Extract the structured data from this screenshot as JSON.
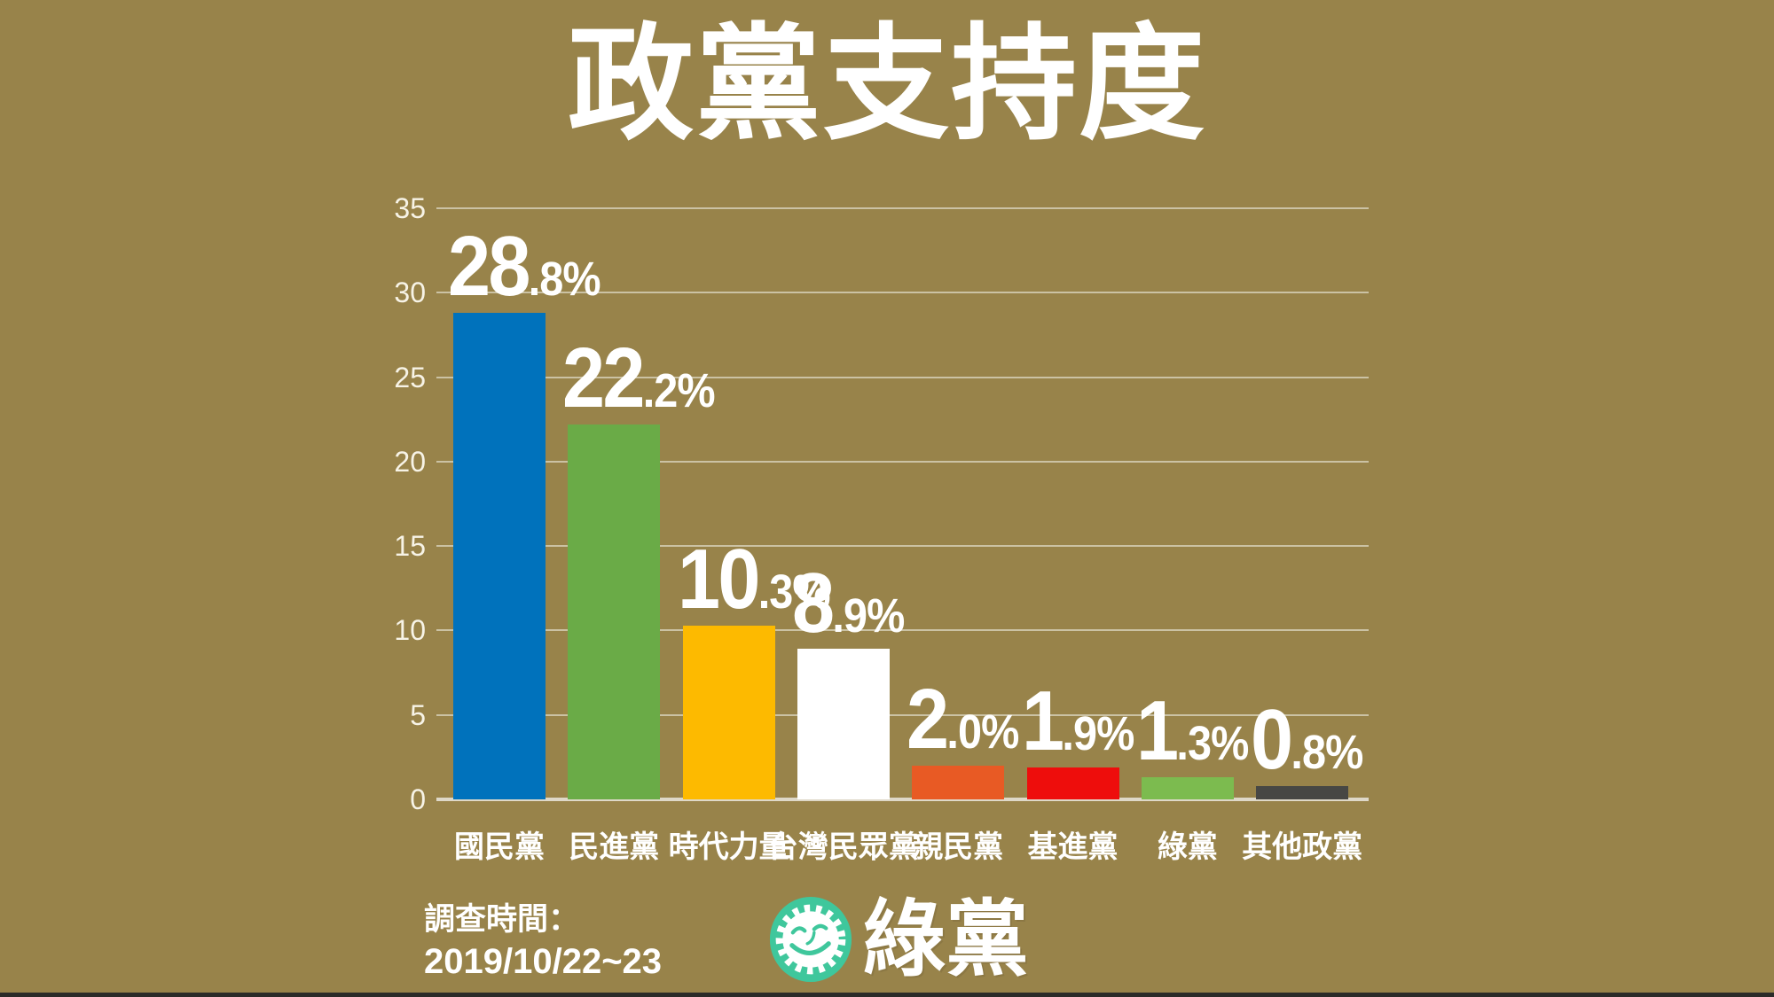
{
  "title": "政黨支持度",
  "chart_data": {
    "type": "bar",
    "title": "政黨支持度",
    "categories": [
      "國民黨",
      "民進黨",
      "時代力量",
      "台灣民眾黨",
      "親民黨",
      "基進黨",
      "綠黨",
      "其他政黨"
    ],
    "values": [
      28.8,
      22.2,
      10.3,
      8.9,
      2.0,
      1.9,
      1.3,
      0.8
    ],
    "value_labels": [
      "28.8%",
      "22.2%",
      "10.3%",
      "8.9%",
      "2.0%",
      "1.9%",
      "1.3%",
      "0.8%"
    ],
    "bar_colors": [
      "#0072bc",
      "#6aab47",
      "#fdba00",
      "#ffffff",
      "#e85a24",
      "#ee0d0c",
      "#7cbb4f",
      "#474744"
    ],
    "y_ticks": [
      0,
      5,
      10,
      15,
      20,
      25,
      30,
      35
    ],
    "ylim": [
      0,
      35
    ],
    "xlabel": "",
    "ylabel": "",
    "grid": true,
    "legend": false
  },
  "footer": {
    "survey_label": "調查時間：",
    "survey_date": "2019/10/22~23",
    "logo_text": "綠黨"
  },
  "colors": {
    "background": "#98834a",
    "gridline": "#cbc2a4",
    "axis_line": "#ded8c8",
    "text": "#ffffff",
    "logo_teal": "#3fc79c",
    "bottom_border": "#2b2b29"
  }
}
